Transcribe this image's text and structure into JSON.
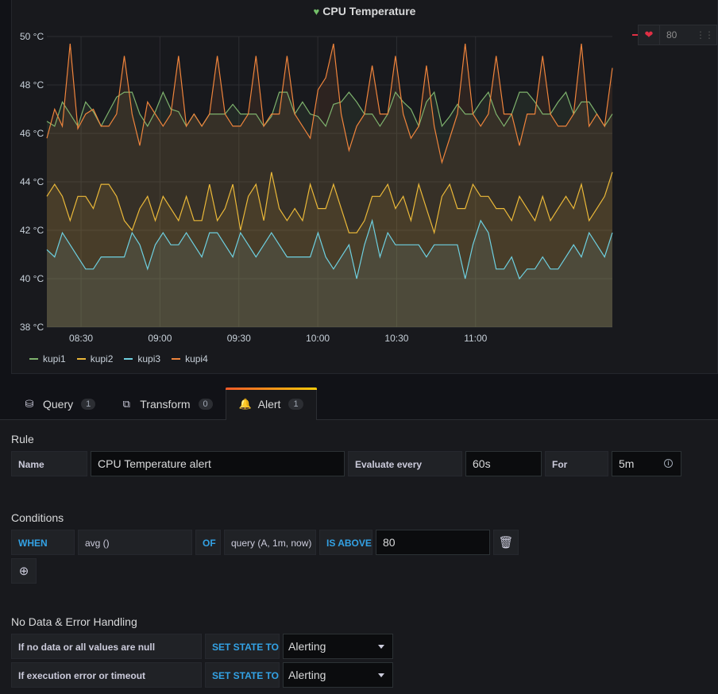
{
  "panel": {
    "title": "CPU Temperature",
    "threshold_value": "80"
  },
  "colors": {
    "kupi1": "#7eb26d",
    "kupi2": "#eab839",
    "kupi3": "#6ed0e0",
    "kupi4": "#ef843c",
    "threshold": "#e02f44",
    "link": "#33a2e5"
  },
  "chart_data": {
    "type": "line",
    "title": "CPU Temperature",
    "ylim": [
      38,
      50
    ],
    "y_ticks": [
      "38 °C",
      "40 °C",
      "42 °C",
      "44 °C",
      "46 °C",
      "48 °C",
      "50 °C"
    ],
    "x_ticks": [
      "08:30",
      "09:00",
      "09:30",
      "10:00",
      "10:30",
      "11:00"
    ],
    "x_range_minutes": [
      0,
      215
    ],
    "x_tick_minutes": [
      13,
      43,
      73,
      103,
      133,
      163
    ],
    "legend": [
      "kupi1",
      "kupi2",
      "kupi3",
      "kupi4"
    ],
    "series": [
      {
        "name": "kupi1",
        "values": [
          46.5,
          46.3,
          47.3,
          46.8,
          46.3,
          47.3,
          46.9,
          46.3,
          46.9,
          47.5,
          47.7,
          47.7,
          46.8,
          46.3,
          46.9,
          47.7,
          47.0,
          46.9,
          46.3,
          46.8,
          46.3,
          46.8,
          46.8,
          46.8,
          47.2,
          46.8,
          46.8,
          46.8,
          46.3,
          46.7,
          47.7,
          47.7,
          46.8,
          47.3,
          46.8,
          46.7,
          46.3,
          47.2,
          47.3,
          47.7,
          47.3,
          46.8,
          46.8,
          46.3,
          46.8,
          47.7,
          47.3,
          47.0,
          46.3,
          47.3,
          47.7,
          46.3,
          46.7,
          47.2,
          46.8,
          46.8,
          47.3,
          47.7,
          46.8,
          46.3,
          46.8,
          47.7,
          47.7,
          47.3,
          46.8,
          46.8,
          47.3,
          47.7,
          46.8,
          47.3,
          47.3,
          46.8,
          46.3,
          46.8
        ]
      },
      {
        "name": "kupi2",
        "values": [
          43.4,
          43.9,
          43.4,
          42.4,
          43.4,
          43.4,
          42.9,
          43.9,
          43.9,
          43.4,
          42.4,
          42.0,
          42.9,
          43.4,
          42.4,
          43.4,
          42.9,
          42.4,
          43.4,
          42.4,
          42.4,
          43.9,
          42.4,
          42.9,
          43.9,
          42.0,
          43.4,
          43.9,
          42.4,
          44.4,
          42.9,
          42.4,
          42.9,
          42.4,
          43.9,
          42.9,
          42.9,
          43.9,
          42.9,
          41.9,
          41.9,
          42.4,
          43.4,
          43.4,
          43.9,
          42.9,
          43.4,
          42.4,
          43.9,
          42.9,
          41.9,
          43.4,
          43.9,
          42.9,
          42.9,
          43.9,
          43.4,
          43.4,
          42.9,
          42.9,
          42.4,
          43.4,
          42.9,
          42.4,
          43.4,
          42.4,
          42.9,
          43.4,
          42.9,
          43.9,
          42.4,
          42.9,
          43.4,
          44.4
        ]
      },
      {
        "name": "kupi3",
        "values": [
          41.2,
          40.9,
          41.9,
          41.4,
          40.9,
          40.4,
          40.4,
          40.9,
          40.9,
          40.9,
          40.9,
          41.9,
          41.4,
          40.4,
          41.4,
          41.9,
          41.4,
          41.4,
          41.9,
          41.4,
          40.9,
          41.9,
          41.9,
          41.4,
          40.9,
          41.9,
          41.4,
          40.9,
          41.4,
          41.9,
          41.4,
          40.9,
          40.9,
          40.9,
          40.9,
          41.9,
          40.9,
          40.4,
          40.9,
          41.4,
          40.0,
          41.4,
          42.4,
          40.9,
          41.9,
          41.4,
          41.4,
          41.4,
          41.4,
          40.9,
          41.4,
          41.4,
          41.4,
          41.4,
          40.0,
          41.4,
          42.4,
          41.9,
          40.4,
          40.4,
          40.9,
          40.0,
          40.4,
          40.4,
          40.9,
          40.4,
          40.4,
          40.9,
          41.4,
          40.9,
          41.9,
          41.4,
          40.9,
          41.9
        ]
      },
      {
        "name": "kupi4",
        "values": [
          45.8,
          47.0,
          46.3,
          49.7,
          46.2,
          46.8,
          47.0,
          46.3,
          46.3,
          46.8,
          49.2,
          46.8,
          45.5,
          47.3,
          46.8,
          46.3,
          46.8,
          49.2,
          46.3,
          46.8,
          46.3,
          46.8,
          49.2,
          46.8,
          46.3,
          46.3,
          46.8,
          49.2,
          46.3,
          46.8,
          46.8,
          49.2,
          46.8,
          46.3,
          45.8,
          47.8,
          48.3,
          49.7,
          46.8,
          45.3,
          46.3,
          46.8,
          48.8,
          46.8,
          46.8,
          49.2,
          46.8,
          45.8,
          46.3,
          48.8,
          46.3,
          44.8,
          45.8,
          46.8,
          49.7,
          46.8,
          46.3,
          46.8,
          49.2,
          46.8,
          46.8,
          45.5,
          46.8,
          46.8,
          49.2,
          46.8,
          46.3,
          46.3,
          46.8,
          49.7,
          46.3,
          46.8,
          46.3,
          48.7
        ]
      }
    ]
  },
  "tabs": [
    {
      "label": "Query",
      "count": "1"
    },
    {
      "label": "Transform",
      "count": "0"
    },
    {
      "label": "Alert",
      "count": "1"
    }
  ],
  "rule": {
    "section_title": "Rule",
    "name_label": "Name",
    "name_value": "CPU Temperature alert",
    "evaluate_label": "Evaluate every",
    "evaluate_value": "60s",
    "for_label": "For",
    "for_value": "5m"
  },
  "conditions": {
    "section_title": "Conditions",
    "when": "WHEN",
    "reducer": "avg ()",
    "of": "OF",
    "query": "query (A, 1m, now)",
    "evaluator": "IS ABOVE",
    "threshold": "80"
  },
  "nodata": {
    "section_title": "No Data & Error Handling",
    "row1_label": "If no data or all values are null",
    "row1_kw": "SET STATE TO",
    "row1_value": "Alerting",
    "row2_label": "If execution error or timeout",
    "row2_kw": "SET STATE TO",
    "row2_value": "Alerting"
  }
}
